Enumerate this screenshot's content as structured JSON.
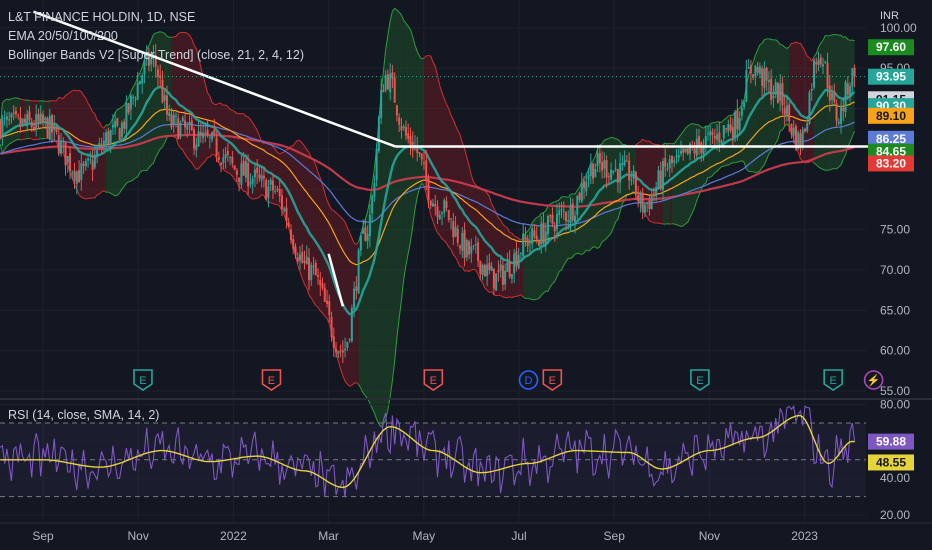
{
  "header": {
    "title": "L&T FINANCE HOLDIN, 1D, NSE",
    "currency": "INR",
    "ema_label": "EMA 20/50/100/200",
    "bb_label": "Bollinger Bands V2 [Super Trend] (close, 21, 2, 4, 12)",
    "rsi_label": "RSI (14, close, SMA, 14, 2)"
  },
  "colors": {
    "background": "#131722",
    "up": "#26a69a",
    "down": "#ef5350",
    "ema20": "#26a69a",
    "ema50": "#f7a21b",
    "ema100": "#5b7bd6",
    "ema200": "#c2394a",
    "bb_fill_up": "#1f5a2a",
    "bb_fill_down": "#7a1c23",
    "rsi": "#7e57c2",
    "rsi_ma": "#e6d33a",
    "trendline": "#ffffff"
  },
  "chart_data": [
    {
      "type": "candlestick",
      "title": "L&T FINANCE HOLDIN, 1D, NSE",
      "y_ticks": [
        55.0,
        60.0,
        65.0,
        70.0,
        75.0,
        80.0,
        85.0,
        90.0,
        95.0,
        100.0
      ],
      "y_tick_labels": [
        "55.00",
        "60.00",
        "65.00",
        "70.00",
        "75.00",
        "",
        "",
        "",
        "95.00",
        "100.00"
      ],
      "x_tick_labels": [
        "Sep",
        "Nov",
        "2022",
        "Mar",
        "May",
        "Jul",
        "Sep",
        "Nov",
        "2023"
      ],
      "price_anchors": [
        {
          "m": 0.0,
          "p": 88
        },
        {
          "m": 0.8,
          "p": 82
        },
        {
          "m": 1.5,
          "p": 87
        },
        {
          "m": 2.3,
          "p": 96
        },
        {
          "m": 2.7,
          "p": 88
        },
        {
          "m": 3.4,
          "p": 86
        },
        {
          "m": 4.2,
          "p": 82
        },
        {
          "m": 4.8,
          "p": 80
        },
        {
          "m": 5.6,
          "p": 70
        },
        {
          "m": 6.3,
          "p": 60
        },
        {
          "m": 6.8,
          "p": 75
        },
        {
          "m": 7.2,
          "p": 94
        },
        {
          "m": 7.7,
          "p": 86
        },
        {
          "m": 8.3,
          "p": 78
        },
        {
          "m": 9.0,
          "p": 72
        },
        {
          "m": 9.5,
          "p": 69
        },
        {
          "m": 10.3,
          "p": 74
        },
        {
          "m": 11.0,
          "p": 77
        },
        {
          "m": 11.6,
          "p": 83
        },
        {
          "m": 12.3,
          "p": 82
        },
        {
          "m": 12.6,
          "p": 78
        },
        {
          "m": 13.2,
          "p": 83
        },
        {
          "m": 14.0,
          "p": 86
        },
        {
          "m": 14.5,
          "p": 88
        },
        {
          "m": 14.9,
          "p": 95
        },
        {
          "m": 15.4,
          "p": 92
        },
        {
          "m": 15.9,
          "p": 86
        },
        {
          "m": 16.3,
          "p": 97
        },
        {
          "m": 16.7,
          "p": 89
        },
        {
          "m": 17.0,
          "p": 94
        }
      ],
      "emas": [
        {
          "name": "EMA 20",
          "value": 91.15,
          "color": "#26a69a"
        },
        {
          "name": "EMA 50",
          "value": 89.1,
          "color": "#f7a21b"
        },
        {
          "name": "EMA 100",
          "value": 86.25,
          "color": "#5b7bd6"
        },
        {
          "name": "EMA 200",
          "value": 84.65,
          "color": "#c2394a"
        }
      ],
      "bollinger": {
        "upper": 97.6,
        "lower": 83.2,
        "basis": 90.3
      },
      "price_labels": [
        {
          "value": "97.60",
          "bg": "#1b8a1f",
          "fg": "#ffffff"
        },
        {
          "value": "93.95",
          "bg": "#26a69a",
          "fg": "#ffffff"
        },
        {
          "value": "91.15",
          "bg": "#d1d4dc",
          "fg": "#131722"
        },
        {
          "value": "90.30",
          "bg": "#26a69a",
          "fg": "#ffffff"
        },
        {
          "value": "89.10",
          "bg": "#f7a21b",
          "fg": "#131722"
        },
        {
          "value": "86.25",
          "bg": "#5b7bd6",
          "fg": "#ffffff"
        },
        {
          "value": "84.65",
          "bg": "#1b8a1f",
          "fg": "#ffffff"
        },
        {
          "value": "83.20",
          "bg": "#e53935",
          "fg": "#ffffff"
        }
      ],
      "last_price": 93.95,
      "trendlines": [
        {
          "from": {
            "m": -0.2,
            "p": 102
          },
          "to": {
            "m": 7.4,
            "p": 85.3
          }
        },
        {
          "from": {
            "m": 7.4,
            "p": 85.3
          },
          "to": {
            "m": 17.6,
            "p": 85.3
          }
        },
        {
          "from": {
            "m": 6.0,
            "p": 72
          },
          "to": {
            "m": 6.3,
            "p": 65.5
          }
        }
      ],
      "events": [
        {
          "label": "E",
          "m": 2.1,
          "kind": "earnings-up"
        },
        {
          "label": "E",
          "m": 4.8,
          "kind": "earnings-down"
        },
        {
          "label": "E",
          "m": 8.2,
          "kind": "earnings-down"
        },
        {
          "label": "D",
          "m": 10.2,
          "kind": "dividend"
        },
        {
          "label": "E",
          "m": 10.7,
          "kind": "earnings-down"
        },
        {
          "label": "E",
          "m": 13.8,
          "kind": "earnings-up"
        },
        {
          "label": "E",
          "m": 16.6,
          "kind": "earnings-up"
        },
        {
          "label": "⚡",
          "m": 17.45,
          "kind": "split"
        }
      ]
    },
    {
      "type": "line",
      "title": "RSI (14, close, SMA, 14, 2)",
      "y_ticks": [
        20.0,
        40.0,
        60.0,
        80.0
      ],
      "y_tick_labels": [
        "20.00",
        "40.00",
        "60.00",
        "80.00"
      ],
      "bands": [
        70,
        50,
        30
      ],
      "rsi_last": "59.88",
      "rsi_ma_last": "48.55",
      "rsi_ma_anchors": [
        {
          "m": 0.0,
          "v": 50
        },
        {
          "m": 1.2,
          "v": 46
        },
        {
          "m": 2.5,
          "v": 55
        },
        {
          "m": 3.5,
          "v": 49
        },
        {
          "m": 4.5,
          "v": 52
        },
        {
          "m": 5.5,
          "v": 44
        },
        {
          "m": 6.3,
          "v": 35
        },
        {
          "m": 7.3,
          "v": 68
        },
        {
          "m": 8.2,
          "v": 55
        },
        {
          "m": 9.2,
          "v": 43
        },
        {
          "m": 10.2,
          "v": 48
        },
        {
          "m": 11.2,
          "v": 55
        },
        {
          "m": 12.3,
          "v": 54
        },
        {
          "m": 13.0,
          "v": 45
        },
        {
          "m": 14.0,
          "v": 55
        },
        {
          "m": 15.0,
          "v": 62
        },
        {
          "m": 15.9,
          "v": 74
        },
        {
          "m": 16.5,
          "v": 48
        },
        {
          "m": 17.0,
          "v": 60
        },
        {
          "m": 17.6,
          "v": 48.55
        }
      ]
    }
  ]
}
